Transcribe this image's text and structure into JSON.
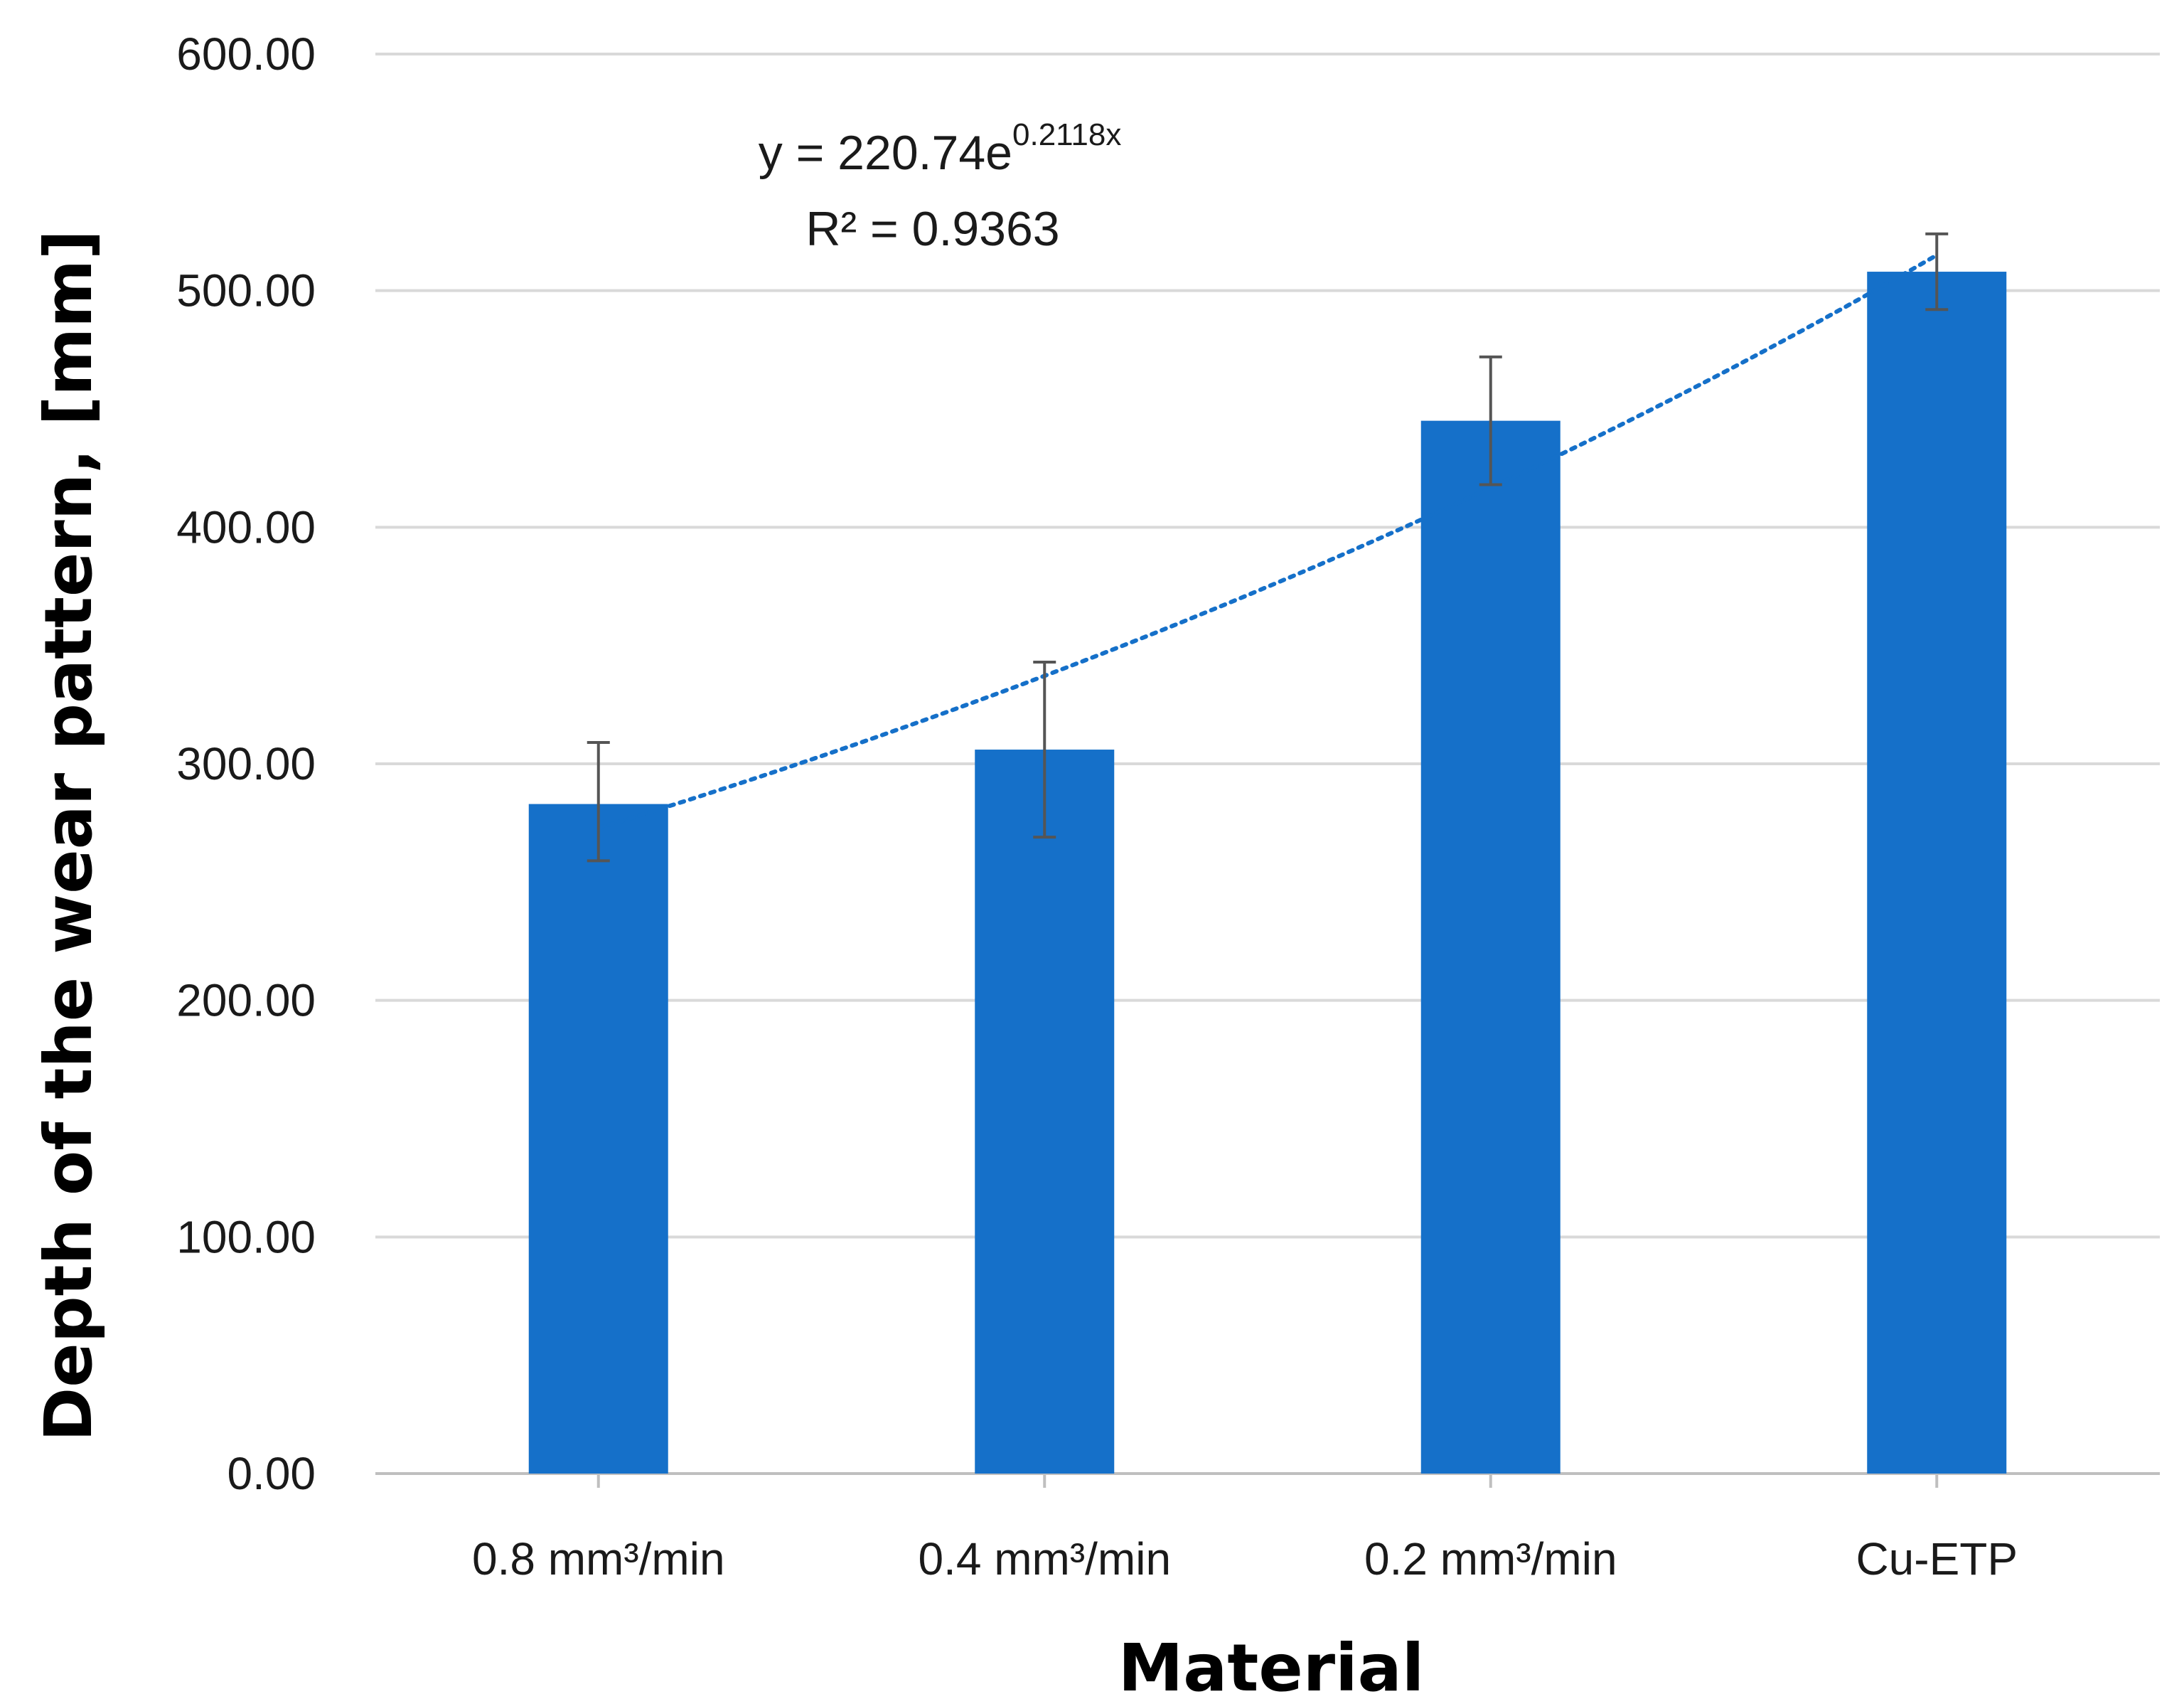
{
  "chart_data": {
    "type": "bar",
    "title": "",
    "xlabel": "Material",
    "ylabel": "Depth of the wear pattern, [mm]",
    "categories": [
      "0.8 mm³/min",
      "0.4 mm³/min",
      "0.2 mm³/min",
      "Cu-ETP"
    ],
    "values": [
      283,
      306,
      445,
      508
    ],
    "error_minus": [
      24,
      37,
      27,
      16
    ],
    "error_plus": [
      26,
      37,
      27,
      16
    ],
    "ylim": [
      0,
      600
    ],
    "yticks": [
      "0.00",
      "100.00",
      "200.00",
      "300.00",
      "400.00",
      "500.00",
      "600.00"
    ],
    "ytick_values": [
      0,
      100,
      200,
      300,
      400,
      500,
      600
    ],
    "grid": true,
    "bar_color": "#1570C9",
    "trendline": {
      "type": "exponential",
      "a": 220.74,
      "b": 0.2118,
      "equation_prefix": "y = 220.74e",
      "equation_exponent": "0.2118x",
      "r_squared_label": "R² = 0.9363",
      "color": "#1570C9"
    }
  }
}
